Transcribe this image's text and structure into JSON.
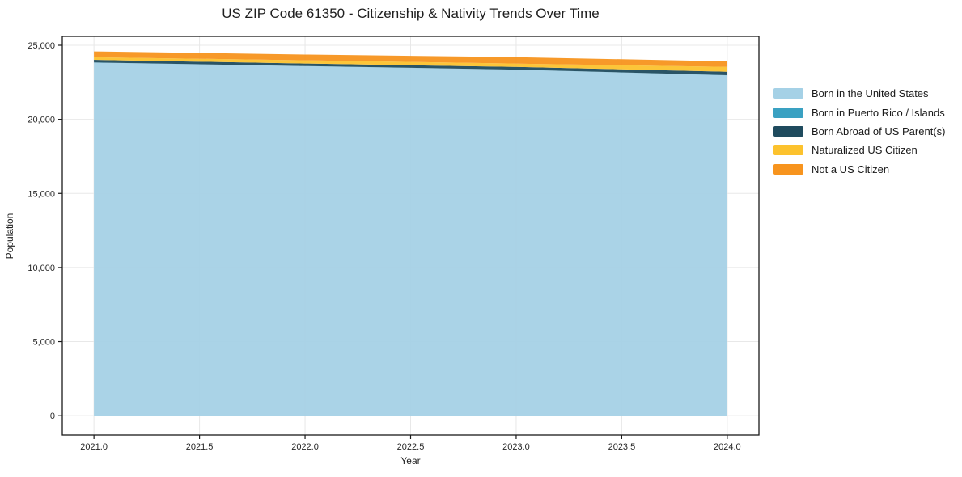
{
  "figure": {
    "title": "US ZIP Code 61350 - Citizenship & Nativity Trends Over Time",
    "xlabel": "Year",
    "ylabel": "Population"
  },
  "chart_data": {
    "type": "area",
    "stacked": true,
    "title": "US ZIP Code 61350 - Citizenship & Nativity Trends Over Time",
    "xlabel": "Year",
    "ylabel": "Population",
    "x": [
      2021,
      2022,
      2023,
      2024
    ],
    "series": [
      {
        "id": "born-us",
        "name": "Born in the United States",
        "color": "#A5D1E6",
        "values": [
          23825,
          23590,
          23350,
          22970
        ]
      },
      {
        "id": "born-pr",
        "name": "Born in Puerto Rico / Islands",
        "color": "#3AA1C2",
        "values": [
          10,
          10,
          10,
          10
        ]
      },
      {
        "id": "born-abroad",
        "name": "Born Abroad of US Parent(s)",
        "color": "#1F4B5E",
        "values": [
          185,
          165,
          180,
          235
        ]
      },
      {
        "id": "naturalized",
        "name": "Naturalized US Citizen",
        "color": "#FCC22E",
        "values": [
          170,
          220,
          220,
          330
        ]
      },
      {
        "id": "not-citizen",
        "name": "Not a US Citizen",
        "color": "#F7941E",
        "values": [
          395,
          385,
          440,
          370
        ]
      }
    ],
    "xlim": [
      2020.85,
      2024.15
    ],
    "ylim": [
      -1300,
      25600
    ],
    "xticks": {
      "values": [
        2021.0,
        2021.5,
        2022.0,
        2022.5,
        2023.0,
        2023.5,
        2024.0
      ],
      "labels": [
        "2021.0",
        "2021.5",
        "2022.0",
        "2022.5",
        "2023.0",
        "2023.5",
        "2024.0"
      ]
    },
    "yticks": {
      "values": [
        0,
        5000,
        10000,
        15000,
        20000,
        25000
      ],
      "labels": [
        "0",
        "5,000",
        "10,000",
        "15,000",
        "20,000",
        "25,000"
      ]
    },
    "grid": true,
    "grid_color": "#e8e8e8",
    "spine_color": "#1a1a1a",
    "legend_position": "right"
  }
}
